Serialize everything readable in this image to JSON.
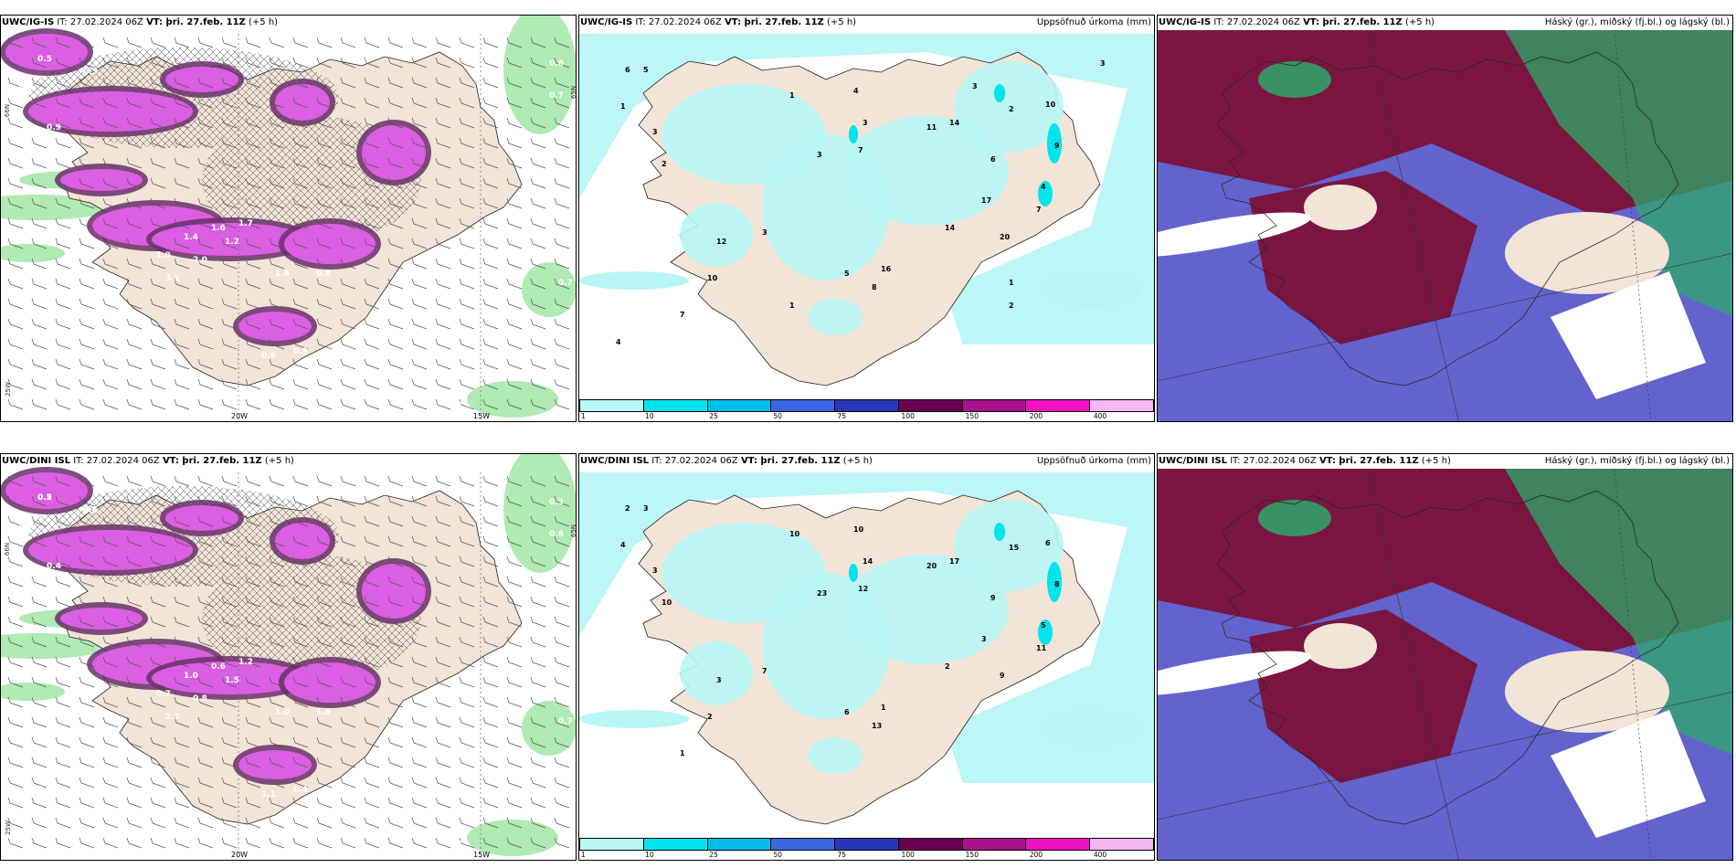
{
  "rows": [
    {
      "model": "UWC/IG-IS",
      "panels": [
        {
          "id": "wind",
          "title_model": "UWC/IG-IS",
          "title_it": "IT: 27.02.2024 06Z",
          "title_vt": "VT: þri. 27.feb. 11Z",
          "title_step": "(+5 h)",
          "title_overflow": "h)",
          "right_label": "",
          "lon_labels": [
            "20W",
            "15W"
          ],
          "side_labels": [
            "25W",
            "66N",
            "65N"
          ],
          "values": [
            "0.5",
            "0.3",
            "0.7",
            "0.9",
            "1.9",
            "1.4",
            "1.6",
            "2.0",
            "1.7",
            "1.2",
            "3.1",
            "1.6",
            "0.8",
            "0.6",
            "0.9",
            "0.7",
            "0.6",
            "0.7",
            "0.8"
          ]
        },
        {
          "id": "precip",
          "title_model": "UWC/IG-IS",
          "title_it": "IT: 27.02.2024 06Z",
          "title_vt": "VT: þri. 27.feb. 11Z",
          "title_step": "(+5 h)",
          "right_label": "Uppsöfnuð úrkoma (mm)",
          "colorbar": {
            "labels": [
              "1",
              "10",
              "25",
              "50",
              "75",
              "100",
              "150",
              "200",
              "400"
            ],
            "colors": [
              "#b8f6f6",
              "#00e5ec",
              "#00bde8",
              "#3a66e0",
              "#2a36b8",
              "#6a0052",
              "#a8128c",
              "#ee12c0",
              "#f6b8f2"
            ]
          },
          "values": [
            "6",
            "5",
            "1",
            "3",
            "2",
            "1",
            "4",
            "3",
            "7",
            "3",
            "11",
            "14",
            "6",
            "2",
            "10",
            "9",
            "4",
            "7",
            "20",
            "17",
            "14",
            "16",
            "8",
            "5",
            "3",
            "12",
            "10",
            "7",
            "1",
            "2",
            "4",
            "3",
            "3",
            "1"
          ]
        },
        {
          "id": "cloud",
          "title_model": "UWC/IG-IS",
          "title_it": "IT: 27.02.2024 06Z",
          "title_vt": "VT: þri. 27.feb. 11Z",
          "title_step": "(+5 h)",
          "right_label": "Háský (gr.), miðský (fj.bl.) og lágský (bl.)"
        }
      ]
    },
    {
      "model": "UWC/DINI ISL",
      "panels": [
        {
          "id": "wind",
          "title_model": "UWC/DINI ISL",
          "title_it": "IT: 27.02.2024 06Z",
          "title_vt": "VT: þri. 27.feb. 11Z",
          "title_step": "(+5 h)",
          "right_label": "",
          "lon_labels": [
            "20W",
            "15W"
          ],
          "side_labels": [
            "25W",
            "66N",
            "65N"
          ],
          "values": [
            "0.2",
            "0.4",
            "0.3",
            "0.4",
            "0.7",
            "1.0",
            "0.6",
            "0.8",
            "1.2",
            "1.5",
            "2.2",
            "1.0",
            "1.6",
            "1.1",
            "0.4",
            "0.6",
            "0.3",
            "0.7",
            "0.6",
            "0.5",
            "1.6"
          ]
        },
        {
          "id": "precip",
          "title_model": "UWC/DINI ISL",
          "title_it": "IT: 27.02.2024 06Z",
          "title_vt": "VT: þri. 27.feb. 11Z",
          "title_step": "(+5 h)",
          "right_label": "Uppsöfnuð úrkoma (mm)",
          "colorbar": {
            "labels": [
              "1",
              "10",
              "25",
              "50",
              "75",
              "100",
              "150",
              "200",
              "400"
            ],
            "colors": [
              "#b8f6f6",
              "#00e5ec",
              "#00bde8",
              "#3a66e0",
              "#2a36b8",
              "#6a0052",
              "#a8128c",
              "#ee12c0",
              "#f6b8f2"
            ]
          },
          "values": [
            "2",
            "3",
            "4",
            "3",
            "10",
            "10",
            "10",
            "14",
            "12",
            "23",
            "20",
            "17",
            "9",
            "15",
            "6",
            "8",
            "5",
            "11",
            "9",
            "3",
            "2",
            "1",
            "13",
            "6",
            "7",
            "3",
            "2",
            "1"
          ]
        },
        {
          "id": "cloud",
          "title_model": "UWC/DINI ISL",
          "title_it": "IT: 27.02.2024 06Z",
          "title_vt": "VT: þri. 27.feb. 11Z",
          "title_step": "(+5 h)",
          "right_label": "Háský (gr.), miðský (fj.bl.) og lágský (bl.)"
        }
      ]
    }
  ],
  "colors": {
    "land": "#f2e4d6",
    "sea": "#ffffff",
    "precip_light": "#b8f6f6",
    "precip_med": "#00e5ec",
    "snow_magenta": "#e060e8",
    "snow_dark": "#6a2f6a",
    "rain_green": "#9be6a0",
    "cloud_high": "#2ea86a",
    "cloud_mid": "#7a1542",
    "cloud_low": "#5252c8"
  }
}
